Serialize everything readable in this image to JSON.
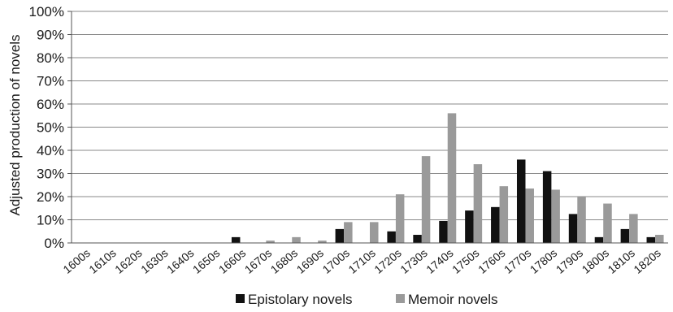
{
  "chart_data": {
    "type": "bar",
    "title": "",
    "xlabel": "",
    "ylabel": "Adjusted production of novels",
    "ylim": [
      0,
      100
    ],
    "y_ticks": [
      "0%",
      "10%",
      "20%",
      "30%",
      "40%",
      "50%",
      "60%",
      "70%",
      "80%",
      "90%",
      "100%"
    ],
    "y_tick_values": [
      0,
      10,
      20,
      30,
      40,
      50,
      60,
      70,
      80,
      90,
      100
    ],
    "grid": true,
    "legend_position": "bottom-center",
    "categories": [
      "1600s",
      "1610s",
      "1620s",
      "1630s",
      "1640s",
      "1650s",
      "1660s",
      "1670s",
      "1680s",
      "1690s",
      "1700s",
      "1710s",
      "1720s",
      "1730s",
      "1740s",
      "1750s",
      "1760s",
      "1770s",
      "1780s",
      "1790s",
      "1800s",
      "1810s",
      "1820s"
    ],
    "series": [
      {
        "name": "Epistolary novels",
        "color": "#111111",
        "values": [
          0,
          0,
          0,
          0,
          0,
          0,
          2.5,
          0,
          0,
          0,
          6,
          0,
          5,
          3.5,
          9.5,
          14,
          15.5,
          36,
          31,
          12.5,
          2.5,
          6,
          2.5
        ]
      },
      {
        "name": "Memoir novels",
        "color": "#9a9a9a",
        "values": [
          0,
          0,
          0,
          0,
          0,
          0,
          0,
          1,
          2.5,
          1,
          9,
          9,
          21,
          37.5,
          56,
          34,
          24.5,
          23.5,
          23,
          20,
          17,
          12.5,
          3.5
        ]
      }
    ]
  }
}
